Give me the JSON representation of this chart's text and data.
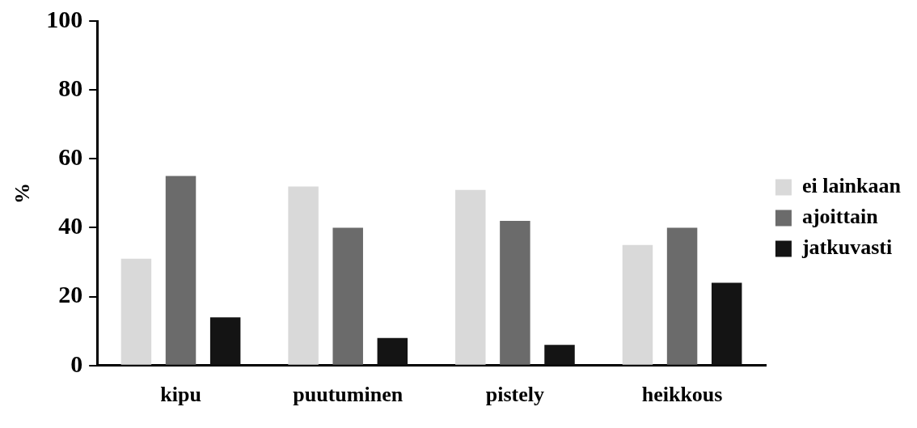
{
  "chart_data": {
    "type": "bar",
    "ylabel": "%",
    "categories": [
      "kipu",
      "puutuminen",
      "pistely",
      "heikkous"
    ],
    "series": [
      {
        "name": "ei lainkaan",
        "color": "#d9d9d9",
        "values": [
          31,
          52,
          51,
          35
        ]
      },
      {
        "name": "ajoittain",
        "color": "#6b6b6b",
        "values": [
          55,
          40,
          42,
          40
        ]
      },
      {
        "name": "jatkuvasti",
        "color": "#141414",
        "values": [
          14,
          8,
          6,
          24
        ]
      }
    ],
    "ylim": [
      0,
      100
    ],
    "yticks": [
      0,
      20,
      40,
      60,
      80,
      100
    ],
    "grid": false,
    "legend": "right"
  }
}
